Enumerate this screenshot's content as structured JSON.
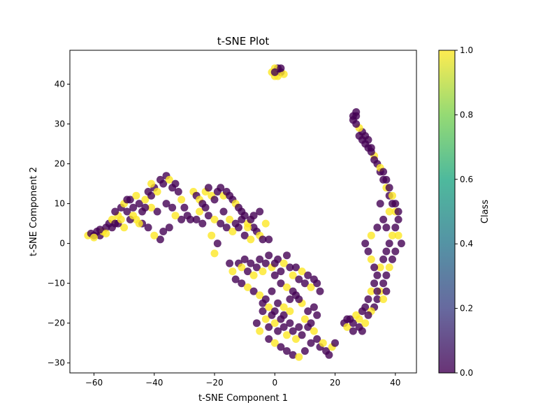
{
  "chart_data": {
    "type": "scatter",
    "title": "t-SNE Plot",
    "xlabel": "t-SNE Component 1",
    "ylabel": "t-SNE Component 2",
    "xlim": [
      -68,
      47
    ],
    "ylim": [
      -32.5,
      48.5
    ],
    "xticks": [
      -60,
      -40,
      -20,
      0,
      20,
      40
    ],
    "yticks": [
      -30,
      -20,
      -10,
      0,
      10,
      20,
      30,
      40
    ],
    "grid": false,
    "colorbar": {
      "label": "Class",
      "colormap": "viridis",
      "range": [
        0.0,
        1.0
      ],
      "ticks": [
        "0.0",
        "0.2",
        "0.4",
        "0.6",
        "0.8",
        "1.0"
      ],
      "colors": [
        "#440154",
        "#414487",
        "#2a788e",
        "#22a884",
        "#7ad151",
        "#fde725"
      ]
    },
    "class_colors": {
      "0": "#440154",
      "1": "#fde725"
    },
    "point_opacity": 0.8,
    "points": [
      [
        -62,
        2,
        1
      ],
      [
        -61,
        2.5,
        0
      ],
      [
        -60,
        2,
        0
      ],
      [
        -59,
        3,
        0
      ],
      [
        -58,
        2,
        0
      ],
      [
        -57,
        3,
        1
      ],
      [
        -56,
        4,
        0
      ],
      [
        -55,
        5,
        0
      ],
      [
        -54,
        6,
        1
      ],
      [
        -53,
        5,
        0
      ],
      [
        -52,
        7,
        1
      ],
      [
        -51,
        9,
        0
      ],
      [
        -50,
        10,
        1
      ],
      [
        -49,
        8,
        0
      ],
      [
        -48,
        11,
        0
      ],
      [
        -47,
        9,
        0
      ],
      [
        -46,
        12,
        1
      ],
      [
        -45,
        10,
        0
      ],
      [
        -44,
        8,
        0
      ],
      [
        -43,
        11,
        1
      ],
      [
        -42,
        13,
        0
      ],
      [
        -41,
        12,
        0
      ],
      [
        -40,
        14,
        0
      ],
      [
        -39,
        13,
        1
      ],
      [
        -38,
        16,
        0
      ],
      [
        -37,
        15,
        0
      ],
      [
        -36,
        17,
        0
      ],
      [
        -35,
        16,
        1
      ],
      [
        -34,
        14,
        0
      ],
      [
        -33,
        15,
        0
      ],
      [
        -32,
        13,
        0
      ],
      [
        -31,
        11,
        1
      ],
      [
        -30,
        9,
        0
      ],
      [
        -29,
        7,
        0
      ],
      [
        -28,
        6,
        0
      ],
      [
        -31,
        6,
        0
      ],
      [
        -33,
        7,
        1
      ],
      [
        -35,
        4,
        0
      ],
      [
        -37,
        3,
        0
      ],
      [
        -38,
        1,
        0
      ],
      [
        -40,
        2,
        1
      ],
      [
        -42,
        4,
        0
      ],
      [
        -44,
        5,
        0
      ],
      [
        -46,
        6,
        1
      ],
      [
        -48,
        6,
        0
      ],
      [
        -50,
        4,
        1
      ],
      [
        -52,
        5,
        0
      ],
      [
        -39,
        8,
        0
      ],
      [
        -41,
        9,
        1
      ],
      [
        -36,
        10,
        0
      ],
      [
        -34,
        9,
        0
      ],
      [
        -45,
        5,
        1
      ],
      [
        -27,
        13,
        1
      ],
      [
        -26,
        12,
        0
      ],
      [
        -25,
        11,
        1
      ],
      [
        -24,
        10,
        0
      ],
      [
        -23,
        13,
        1
      ],
      [
        -22,
        14,
        0
      ],
      [
        -21,
        12,
        1
      ],
      [
        -20,
        11,
        0
      ],
      [
        -19,
        13,
        0
      ],
      [
        -18,
        14,
        0
      ],
      [
        -17,
        12,
        1
      ],
      [
        -16,
        13,
        0
      ],
      [
        -15,
        12,
        0
      ],
      [
        -14,
        11,
        0
      ],
      [
        -13,
        10,
        1
      ],
      [
        -12,
        9,
        0
      ],
      [
        -11,
        8,
        0
      ],
      [
        -10,
        7,
        0
      ],
      [
        -9,
        5,
        1
      ],
      [
        -8,
        6,
        0
      ],
      [
        -7,
        4,
        0
      ],
      [
        -6,
        3,
        0
      ],
      [
        -5,
        2,
        1
      ],
      [
        -4,
        1,
        0
      ],
      [
        -22,
        7,
        0
      ],
      [
        -20,
        6,
        1
      ],
      [
        -18,
        5,
        0
      ],
      [
        -16,
        4,
        0
      ],
      [
        -14,
        3,
        1
      ],
      [
        -12,
        4,
        0
      ],
      [
        -10,
        2,
        0
      ],
      [
        -8,
        1,
        1
      ],
      [
        -24,
        5,
        0
      ],
      [
        -21,
        2,
        1
      ],
      [
        -19,
        0,
        0
      ],
      [
        -20,
        -2.5,
        1
      ],
      [
        -17,
        8,
        0
      ],
      [
        -15,
        6,
        1
      ],
      [
        -13,
        5,
        0
      ],
      [
        -11,
        6,
        0
      ],
      [
        -9,
        4,
        1
      ],
      [
        -7,
        7,
        0
      ],
      [
        -5,
        8,
        0
      ],
      [
        -3,
        5,
        1
      ],
      [
        -2,
        1,
        0
      ],
      [
        -25,
        8,
        1
      ],
      [
        -23,
        9,
        0
      ],
      [
        -26,
        6,
        0
      ],
      [
        -12,
        -5,
        0
      ],
      [
        -11,
        -6,
        1
      ],
      [
        -10,
        -4,
        0
      ],
      [
        -9,
        -7,
        0
      ],
      [
        -8,
        -5,
        0
      ],
      [
        -7,
        -8,
        1
      ],
      [
        -6,
        -6,
        0
      ],
      [
        -5,
        -4,
        0
      ],
      [
        -4,
        -7,
        1
      ],
      [
        -3,
        -5,
        0
      ],
      [
        -2,
        -3,
        0
      ],
      [
        -1,
        -6,
        1
      ],
      [
        0,
        -5,
        0
      ],
      [
        1,
        -4,
        0
      ],
      [
        2,
        -7,
        0
      ],
      [
        3,
        -5,
        1
      ],
      [
        4,
        -3,
        0
      ],
      [
        5,
        -6,
        0
      ],
      [
        6,
        -8,
        1
      ],
      [
        7,
        -6,
        0
      ],
      [
        8,
        -9,
        0
      ],
      [
        9,
        -7,
        1
      ],
      [
        10,
        -10,
        0
      ],
      [
        11,
        -8,
        0
      ],
      [
        12,
        -11,
        1
      ],
      [
        13,
        -9,
        0
      ],
      [
        14,
        -10,
        0
      ],
      [
        15,
        -12,
        0
      ],
      [
        -13,
        -9,
        0
      ],
      [
        -14,
        -7,
        1
      ],
      [
        -15,
        -5,
        0
      ],
      [
        -11,
        -10,
        0
      ],
      [
        -9,
        -11,
        1
      ],
      [
        -7,
        -12,
        0
      ],
      [
        -5,
        -13,
        1
      ],
      [
        -3,
        -14,
        0
      ],
      [
        -1,
        -12,
        0
      ],
      [
        1,
        -15,
        0
      ],
      [
        3,
        -16,
        1
      ],
      [
        5,
        -14,
        0
      ],
      [
        7,
        -13,
        0
      ],
      [
        9,
        -15,
        1
      ],
      [
        11,
        -17,
        0
      ],
      [
        13,
        -16,
        0
      ],
      [
        14,
        -18,
        0
      ],
      [
        -4,
        -17,
        0
      ],
      [
        -3,
        -19,
        1
      ],
      [
        -2,
        -21,
        0
      ],
      [
        -1,
        -18,
        0
      ],
      [
        0,
        -20,
        1
      ],
      [
        1,
        -22,
        0
      ],
      [
        2,
        -19,
        0
      ],
      [
        3,
        -21,
        0
      ],
      [
        4,
        -23,
        1
      ],
      [
        5,
        -20,
        0
      ],
      [
        6,
        -22,
        0
      ],
      [
        7,
        -24,
        1
      ],
      [
        8,
        -21,
        0
      ],
      [
        9,
        -23,
        0
      ],
      [
        10,
        -19,
        1
      ],
      [
        11,
        -21,
        0
      ],
      [
        12,
        -20,
        0
      ],
      [
        13,
        -22,
        1
      ],
      [
        14,
        -24,
        0
      ],
      [
        15,
        -26,
        0
      ],
      [
        16,
        -25,
        1
      ],
      [
        17,
        -27,
        0
      ],
      [
        18,
        -28,
        0
      ],
      [
        19,
        -26,
        1
      ],
      [
        20,
        -25,
        0
      ],
      [
        -2,
        -24,
        0
      ],
      [
        0,
        -25,
        1
      ],
      [
        2,
        -26,
        0
      ],
      [
        4,
        -27,
        0
      ],
      [
        6,
        -28,
        0
      ],
      [
        8,
        -28.5,
        1
      ],
      [
        10,
        -27,
        0
      ],
      [
        12,
        -25,
        0
      ],
      [
        -5,
        -22,
        1
      ],
      [
        -6,
        -20,
        0
      ],
      [
        -4,
        -15,
        0
      ],
      [
        -2,
        -16,
        1
      ],
      [
        0,
        -17,
        0
      ],
      [
        3,
        -18,
        0
      ],
      [
        5,
        -17,
        1
      ],
      [
        0,
        -8,
        0
      ],
      [
        2,
        -10,
        0
      ],
      [
        4,
        -11,
        1
      ],
      [
        6,
        -12,
        0
      ],
      [
        8,
        -14,
        0
      ],
      [
        1,
        43,
        1
      ],
      [
        0,
        42,
        1
      ],
      [
        1,
        44,
        0
      ],
      [
        2,
        43,
        0
      ],
      [
        0,
        44,
        1
      ],
      [
        3,
        42.5,
        1
      ],
      [
        -1,
        43,
        1
      ],
      [
        1,
        42,
        1
      ],
      [
        2,
        44,
        0
      ],
      [
        0,
        43,
        0
      ],
      [
        23,
        -20,
        0
      ],
      [
        24,
        -21,
        1
      ],
      [
        25,
        -19,
        0
      ],
      [
        26,
        -20,
        0
      ],
      [
        27,
        -18,
        1
      ],
      [
        28,
        -21,
        0
      ],
      [
        29,
        -22,
        0
      ],
      [
        30,
        -20,
        1
      ],
      [
        26,
        -22,
        0
      ],
      [
        24,
        -19,
        0
      ],
      [
        30,
        -16,
        0
      ],
      [
        31,
        -14,
        0
      ],
      [
        32,
        -12,
        1
      ],
      [
        33,
        -10,
        0
      ],
      [
        34,
        -8,
        0
      ],
      [
        35,
        -6,
        1
      ],
      [
        36,
        -4,
        0
      ],
      [
        37,
        -2,
        0
      ],
      [
        38,
        0,
        0
      ],
      [
        39,
        2,
        1
      ],
      [
        40,
        4,
        0
      ],
      [
        41,
        6,
        0
      ],
      [
        40,
        8,
        1
      ],
      [
        39,
        10,
        0
      ],
      [
        38,
        12,
        0
      ],
      [
        37,
        14,
        1
      ],
      [
        36,
        16,
        0
      ],
      [
        35,
        18,
        0
      ],
      [
        34,
        20,
        0
      ],
      [
        33,
        22,
        1
      ],
      [
        32,
        24,
        0
      ],
      [
        31,
        26,
        0
      ],
      [
        30,
        27,
        0
      ],
      [
        29,
        28,
        0
      ],
      [
        28,
        29,
        1
      ],
      [
        27,
        30,
        0
      ],
      [
        26,
        31,
        0
      ],
      [
        27,
        32,
        0
      ],
      [
        27,
        33,
        0
      ],
      [
        26,
        32,
        0
      ],
      [
        28,
        27,
        0
      ],
      [
        29,
        26,
        0
      ],
      [
        30,
        25,
        0
      ],
      [
        31,
        24,
        0
      ],
      [
        32,
        23,
        0
      ],
      [
        33,
        21,
        0
      ],
      [
        35,
        19,
        1
      ],
      [
        36,
        18,
        0
      ],
      [
        37,
        16,
        0
      ],
      [
        38,
        14,
        0
      ],
      [
        39,
        12,
        1
      ],
      [
        40,
        10,
        0
      ],
      [
        41,
        8,
        0
      ],
      [
        42,
        0,
        0
      ],
      [
        41,
        2,
        1
      ],
      [
        40,
        -2,
        0
      ],
      [
        39,
        -4,
        0
      ],
      [
        38,
        -6,
        1
      ],
      [
        37,
        -8,
        0
      ],
      [
        36,
        -10,
        0
      ],
      [
        35,
        -12,
        1
      ],
      [
        34,
        -14,
        0
      ],
      [
        33,
        -16,
        0
      ],
      [
        32,
        -17,
        1
      ],
      [
        31,
        -18,
        0
      ],
      [
        29,
        -17,
        0
      ],
      [
        28,
        -19,
        1
      ],
      [
        37,
        -12,
        0
      ],
      [
        36,
        -14,
        1
      ],
      [
        34,
        -12,
        0
      ],
      [
        33,
        -6,
        0
      ],
      [
        32,
        -4,
        1
      ],
      [
        31,
        -2,
        0
      ],
      [
        30,
        0,
        0
      ],
      [
        32,
        2,
        1
      ],
      [
        34,
        4,
        0
      ],
      [
        36,
        6,
        0
      ],
      [
        38,
        8,
        1
      ],
      [
        35,
        10,
        0
      ],
      [
        37,
        4,
        0
      ],
      [
        -60,
        1.5,
        1
      ],
      [
        -58,
        3.5,
        0
      ],
      [
        -56,
        2.5,
        1
      ],
      [
        -54,
        4,
        0
      ],
      [
        -53,
        8,
        0
      ],
      [
        -51,
        6,
        1
      ],
      [
        -49,
        11,
        0
      ],
      [
        -47,
        7,
        1
      ],
      [
        -43,
        9,
        0
      ],
      [
        -41,
        15,
        1
      ]
    ]
  }
}
